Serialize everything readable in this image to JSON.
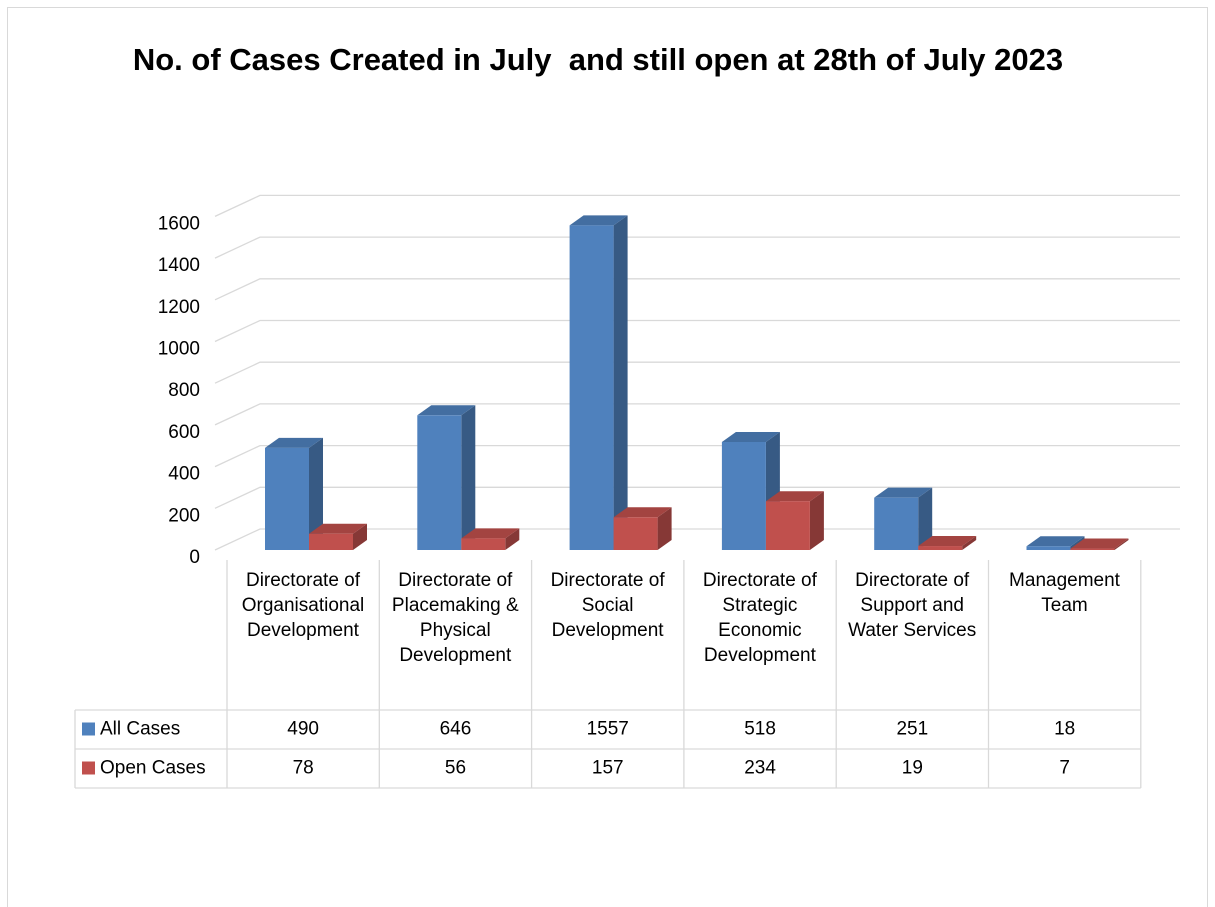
{
  "chart_data": {
    "type": "bar",
    "title": "No. of Cases Created in July  and still open at 28th of July 2023",
    "categories": [
      "Directorate of Organisational Development",
      "Directorate of Placemaking & Physical Development",
      "Directorate of Social Development",
      "Directorate of Strategic Economic Development",
      "Directorate of Support and Water Services",
      "Management Team"
    ],
    "series": [
      {
        "name": "All Cases",
        "color": "#4f81bd",
        "values": [
          490,
          646,
          1557,
          518,
          251,
          18
        ]
      },
      {
        "name": "Open Cases",
        "color": "#c0504d",
        "values": [
          78,
          56,
          157,
          234,
          19,
          7
        ]
      }
    ],
    "ylim": [
      0,
      1600
    ],
    "yticks": [
      0,
      200,
      400,
      600,
      800,
      1000,
      1200,
      1400,
      1600
    ],
    "grid": true
  }
}
